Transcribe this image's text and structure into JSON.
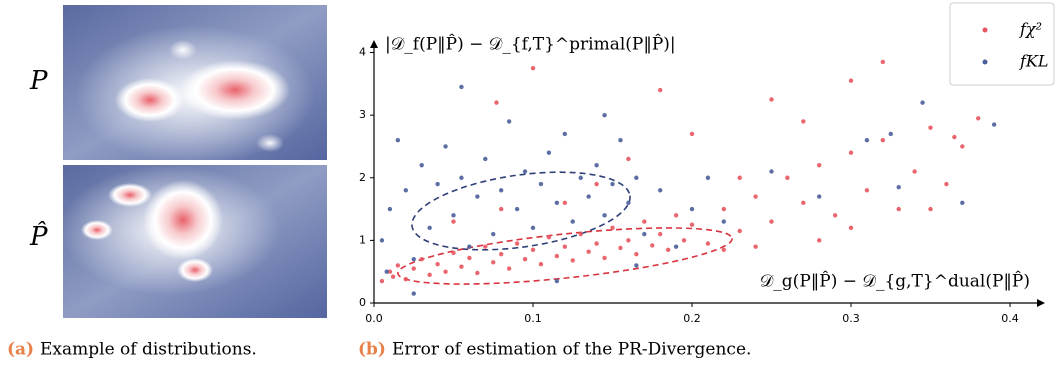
{
  "panel_a": {
    "row_labels": [
      "P",
      "P̂"
    ],
    "caption_tag": "(a)",
    "caption": "Example of distributions."
  },
  "panel_b": {
    "caption_tag": "(b)",
    "caption": "Error of estimation of the PR-Divergence."
  },
  "chart_data": {
    "type": "scatter",
    "y_label": "|𝒟_f(P‖P̂) − 𝒟_{f,T}^primal(P‖P̂)|",
    "x_label": "𝒟_g(P‖P̂) − 𝒟_{g,T}^dual(P‖P̂)",
    "xlim": [
      0,
      0.422
    ],
    "ylim": [
      0,
      4.2
    ],
    "xticks": [
      {
        "value": 0,
        "label": "0.0"
      },
      0.1,
      0.2,
      0.3,
      0.4
    ],
    "yticks": [
      0,
      1,
      2,
      3,
      4
    ],
    "legend": "upper right",
    "series": [
      {
        "name": "fχ²",
        "color": "#e8555f",
        "x": [
          0.005,
          0.01,
          0.012,
          0.015,
          0.02,
          0.025,
          0.03,
          0.035,
          0.04,
          0.045,
          0.05,
          0.055,
          0.06,
          0.065,
          0.07,
          0.075,
          0.08,
          0.085,
          0.09,
          0.095,
          0.1,
          0.105,
          0.11,
          0.115,
          0.12,
          0.125,
          0.13,
          0.135,
          0.14,
          0.145,
          0.15,
          0.155,
          0.16,
          0.165,
          0.17,
          0.175,
          0.18,
          0.185,
          0.19,
          0.195,
          0.2,
          0.21,
          0.22,
          0.23,
          0.24,
          0.25,
          0.26,
          0.27,
          0.28,
          0.29,
          0.3,
          0.31,
          0.32,
          0.33,
          0.34,
          0.35,
          0.36,
          0.37,
          0.38,
          0.1,
          0.077,
          0.18,
          0.3,
          0.32,
          0.25,
          0.27,
          0.12,
          0.14,
          0.16,
          0.05,
          0.08,
          0.2,
          0.23,
          0.35,
          0.365,
          0.22,
          0.28,
          0.3,
          0.24
        ],
        "values": [
          0.35,
          0.5,
          0.42,
          0.6,
          0.38,
          0.55,
          0.7,
          0.45,
          0.62,
          0.5,
          0.8,
          0.58,
          0.72,
          0.48,
          0.9,
          0.65,
          0.78,
          0.55,
          0.95,
          0.7,
          0.85,
          0.62,
          1.05,
          0.75,
          0.9,
          0.68,
          1.1,
          0.82,
          0.95,
          0.72,
          1.2,
          0.88,
          1.0,
          0.78,
          1.3,
          0.92,
          1.1,
          0.85,
          1.4,
          1.0,
          1.25,
          0.95,
          1.5,
          1.15,
          1.7,
          1.3,
          2.0,
          1.6,
          2.2,
          1.4,
          2.4,
          1.8,
          2.6,
          1.5,
          2.1,
          2.8,
          1.9,
          2.5,
          2.95,
          3.75,
          3.2,
          3.4,
          3.55,
          3.85,
          3.25,
          2.9,
          1.6,
          1.9,
          2.3,
          1.3,
          1.5,
          2.7,
          2.0,
          1.5,
          2.65,
          0.85,
          1.0,
          1.2,
          0.9
        ]
      },
      {
        "name": "fKL",
        "color": "#4a5f9a",
        "x": [
          0.005,
          0.008,
          0.01,
          0.015,
          0.02,
          0.025,
          0.03,
          0.035,
          0.04,
          0.045,
          0.05,
          0.055,
          0.06,
          0.065,
          0.07,
          0.075,
          0.08,
          0.085,
          0.09,
          0.095,
          0.1,
          0.105,
          0.11,
          0.115,
          0.12,
          0.125,
          0.13,
          0.135,
          0.14,
          0.145,
          0.15,
          0.155,
          0.16,
          0.165,
          0.17,
          0.18,
          0.19,
          0.2,
          0.21,
          0.22,
          0.25,
          0.28,
          0.31,
          0.325,
          0.345,
          0.37,
          0.39,
          0.33,
          0.145,
          0.055,
          0.165,
          0.115,
          0.025
        ],
        "values": [
          1.0,
          0.5,
          1.5,
          2.6,
          1.8,
          0.7,
          2.2,
          1.2,
          1.9,
          2.5,
          1.4,
          2.0,
          0.9,
          1.7,
          2.3,
          1.1,
          1.8,
          2.9,
          1.5,
          2.1,
          1.2,
          1.9,
          2.4,
          1.6,
          2.7,
          1.3,
          2.0,
          1.7,
          2.2,
          1.4,
          1.9,
          2.6,
          1.6,
          2.0,
          1.1,
          1.8,
          0.9,
          1.5,
          2.0,
          1.3,
          2.1,
          1.7,
          2.6,
          2.7,
          3.2,
          1.6,
          2.85,
          1.85,
          3.0,
          3.45,
          0.6,
          0.35,
          0.15
        ]
      }
    ]
  }
}
